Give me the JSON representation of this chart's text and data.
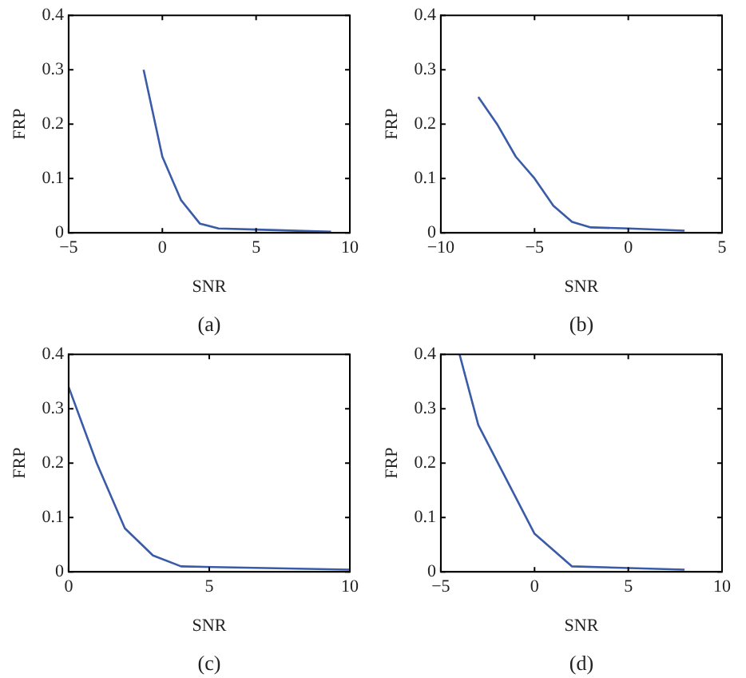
{
  "chart_data": [
    {
      "type": "line",
      "xlabel": "SNR",
      "ylabel": "FRP",
      "annotations": [
        "(a)"
      ],
      "x": [
        -1,
        0,
        1,
        2,
        3,
        5,
        9
      ],
      "series": [
        {
          "color": "#3a5ba8",
          "values": [
            0.3,
            0.14,
            0.06,
            0.017,
            0.008,
            0.006,
            0.002
          ]
        }
      ],
      "xlim": [
        -5,
        10
      ],
      "xticks": [
        -5,
        0,
        5,
        10
      ],
      "ylim": [
        0,
        0.4
      ],
      "yticks": [
        0,
        0.1,
        0.2,
        0.3,
        0.4
      ],
      "grid": false,
      "legend": false,
      "marker": "none",
      "line_style": "solid"
    },
    {
      "type": "line",
      "xlabel": "SNR",
      "ylabel": "FRP",
      "annotations": [
        "(b)"
      ],
      "x": [
        -8,
        -7,
        -6,
        -5,
        -4,
        -3,
        -2,
        0,
        3
      ],
      "series": [
        {
          "color": "#3a5ba8",
          "values": [
            0.25,
            0.2,
            0.14,
            0.1,
            0.05,
            0.02,
            0.01,
            0.008,
            0.004
          ]
        }
      ],
      "xlim": [
        -10,
        5
      ],
      "xticks": [
        -10,
        -5,
        0,
        5
      ],
      "ylim": [
        0,
        0.4
      ],
      "yticks": [
        0,
        0.1,
        0.2,
        0.3,
        0.4
      ],
      "grid": false,
      "legend": false,
      "marker": "none",
      "line_style": "solid"
    },
    {
      "type": "line",
      "xlabel": "SNR",
      "ylabel": "FRP",
      "annotations": [
        "(c)"
      ],
      "x": [
        0,
        1,
        2,
        3,
        4,
        10
      ],
      "series": [
        {
          "color": "#3a5ba8",
          "values": [
            0.34,
            0.2,
            0.08,
            0.03,
            0.01,
            0.004
          ]
        }
      ],
      "xlim": [
        0,
        10
      ],
      "xticks": [
        0,
        5,
        10
      ],
      "ylim": [
        0,
        0.4
      ],
      "yticks": [
        0,
        0.1,
        0.2,
        0.3,
        0.4
      ],
      "grid": false,
      "legend": false,
      "marker": "none",
      "line_style": "solid"
    },
    {
      "type": "line",
      "xlabel": "SNR",
      "ylabel": "FRP",
      "annotations": [
        "(d)"
      ],
      "x": [
        -4,
        -3,
        0,
        2,
        8
      ],
      "series": [
        {
          "color": "#3a5ba8",
          "values": [
            0.4,
            0.27,
            0.07,
            0.01,
            0.004
          ]
        }
      ],
      "xlim": [
        -5,
        10
      ],
      "xticks": [
        -5,
        0,
        5,
        10
      ],
      "ylim": [
        0,
        0.4
      ],
      "yticks": [
        0,
        0.1,
        0.2,
        0.3,
        0.4
      ],
      "grid": false,
      "legend": false,
      "marker": "none",
      "line_style": "solid"
    }
  ]
}
